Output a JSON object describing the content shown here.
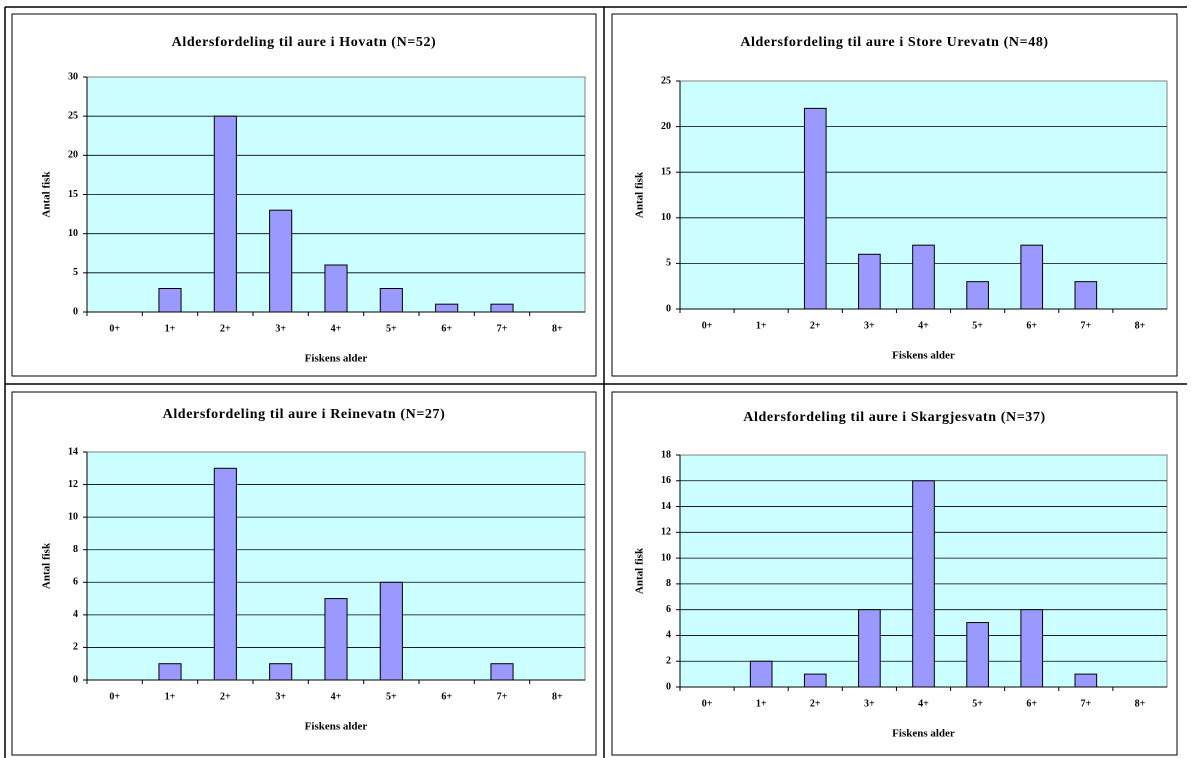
{
  "chart_data": [
    {
      "type": "bar",
      "title": "Aldersfordeling til aure i Hovatn (N=52)",
      "x_label": "Fiskens alder",
      "y_label": "Antal fisk",
      "categories": [
        "0+",
        "1+",
        "2+",
        "3+",
        "4+",
        "5+",
        "6+",
        "7+",
        "8+"
      ],
      "values": [
        0,
        3,
        25,
        13,
        6,
        3,
        1,
        1,
        0
      ],
      "color": "#9999ff",
      "plot_background": "#ccffff",
      "ylim": [
        0,
        30
      ],
      "yticks": [
        0,
        5,
        10,
        15,
        20,
        25,
        30
      ],
      "grid": true
    },
    {
      "type": "bar",
      "title": "Aldersfordeling til aure i Store Urevatn (N=48)",
      "x_label": "Fiskens alder",
      "y_label": "Antal fisk",
      "categories": [
        "0+",
        "1+",
        "2+",
        "3+",
        "4+",
        "5+",
        "6+",
        "7+",
        "8+"
      ],
      "values": [
        0,
        0,
        22,
        6,
        7,
        3,
        7,
        3,
        0
      ],
      "color": "#9999ff",
      "plot_background": "#ccffff",
      "ylim": [
        0,
        25
      ],
      "yticks": [
        0,
        5,
        10,
        15,
        20,
        25
      ],
      "grid": true
    },
    {
      "type": "bar",
      "title": "Aldersfordeling til aure i Reinevatn (N=27)",
      "x_label": "Fiskens alder",
      "y_label": "Antal fisk",
      "categories": [
        "0+",
        "1+",
        "2+",
        "3+",
        "4+",
        "5+",
        "6+",
        "7+",
        "8+"
      ],
      "values": [
        0,
        1,
        13,
        1,
        5,
        6,
        0,
        1,
        0
      ],
      "color": "#9999ff",
      "plot_background": "#ccffff",
      "ylim": [
        0,
        14
      ],
      "yticks": [
        0,
        2,
        4,
        6,
        8,
        10,
        12,
        14
      ],
      "grid": true
    },
    {
      "type": "bar",
      "title": "Aldersfordeling til aure i Skargjesvatn (N=37)",
      "x_label": "Fiskens alder",
      "y_label": "Antal fisk",
      "categories": [
        "0+",
        "1+",
        "2+",
        "3+",
        "4+",
        "5+",
        "6+",
        "7+",
        "8+"
      ],
      "values": [
        0,
        2,
        1,
        6,
        16,
        5,
        6,
        1,
        0
      ],
      "color": "#9999ff",
      "plot_background": "#ccffff",
      "ylim": [
        0,
        18
      ],
      "yticks": [
        0,
        2,
        4,
        6,
        8,
        10,
        12,
        14,
        16,
        18
      ],
      "grid": true
    }
  ]
}
